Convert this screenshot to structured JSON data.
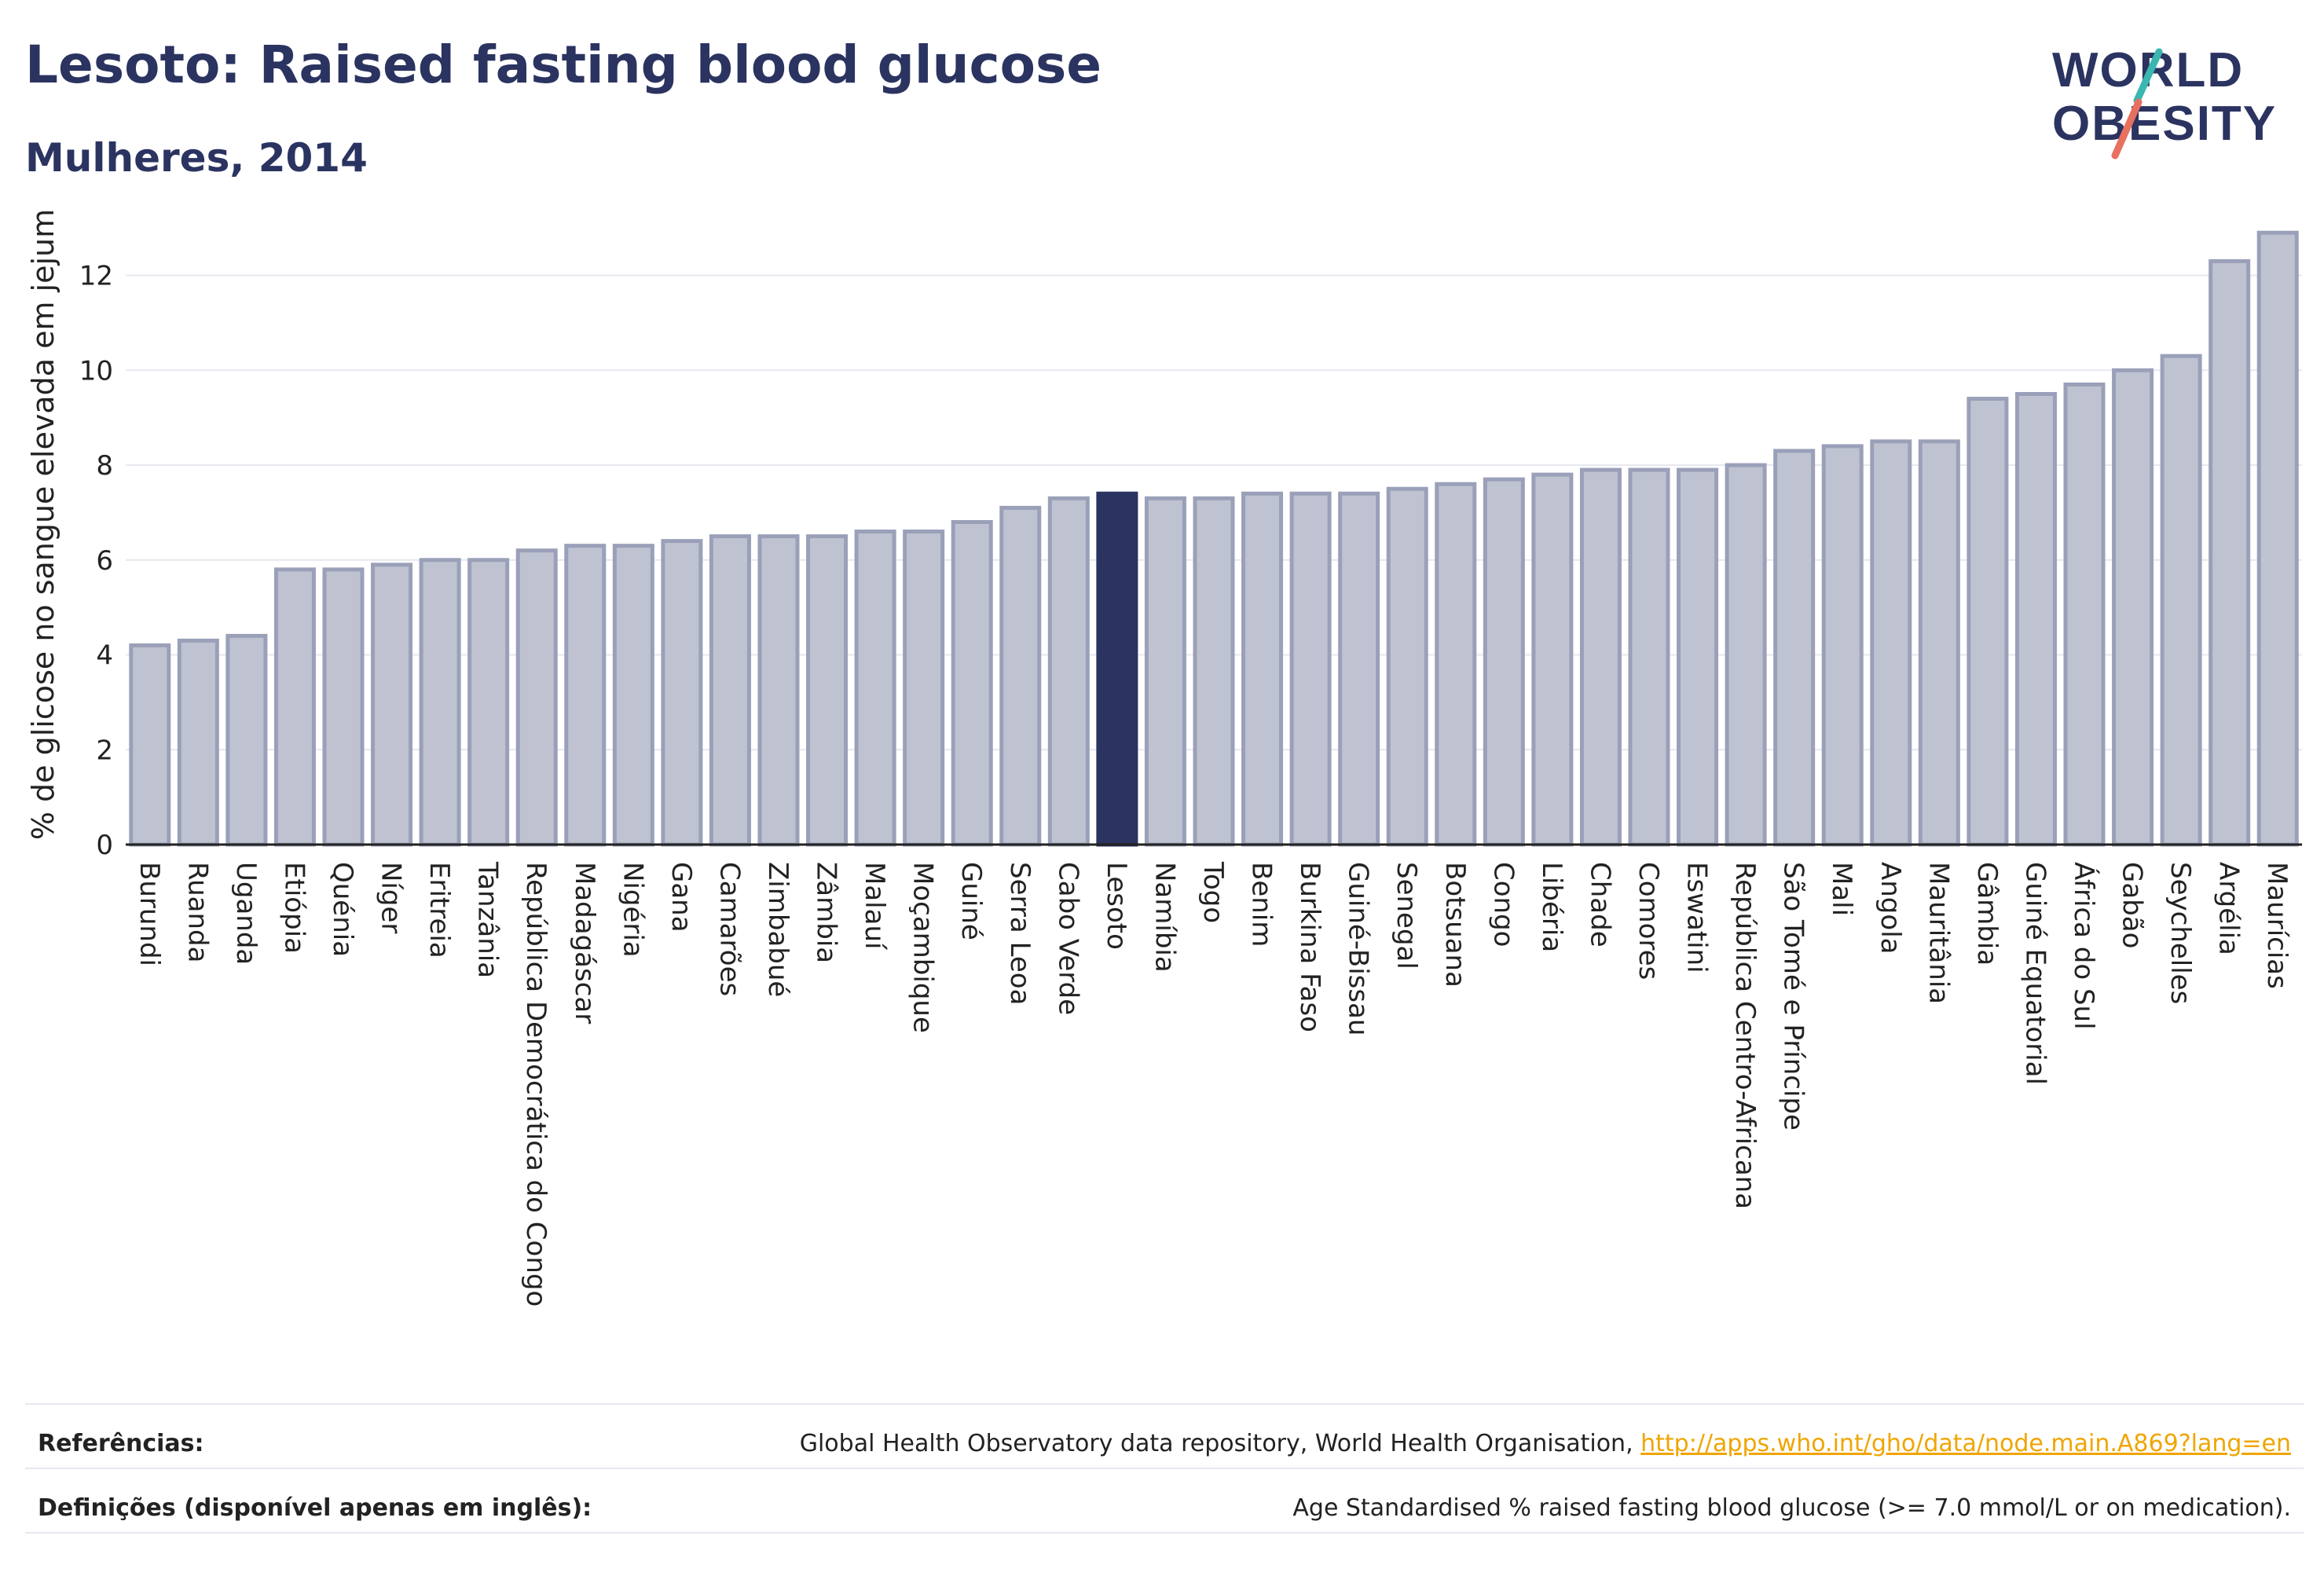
{
  "header": {
    "title": "Lesoto: Raised fasting blood glucose",
    "subtitle": "Mulheres, 2014"
  },
  "logo": {
    "line1": "WORLD",
    "line2": "OBESITY",
    "accent_teal": "#39b7b0",
    "accent_coral": "#e8705f",
    "text_color": "#2b3360"
  },
  "colors": {
    "bar": "#bfc3d1",
    "bar_stroke": "#9aa0b8",
    "highlight": "#2b3360",
    "grid": "#e6e8ef",
    "axis_text": "#222222"
  },
  "chart_data": {
    "type": "bar",
    "ylabel": "% de glicose no sangue elevada em jejum",
    "xlabel": "",
    "ylim": [
      0,
      13.5
    ],
    "yticks": [
      0,
      2,
      4,
      6,
      8,
      10,
      12
    ],
    "grid": true,
    "highlight": "Lesoto",
    "categories": [
      "Burundi",
      "Ruanda",
      "Uganda",
      "Etiópia",
      "Quénia",
      "Níger",
      "Eritreia",
      "Tanzânia",
      "República Democrática do Congo",
      "Madagáscar",
      "Nigéria",
      "Gana",
      "Camarões",
      "Zimbabué",
      "Zâmbia",
      "Malauí",
      "Moçambique",
      "Guiné",
      "Serra Leoa",
      "Cabo Verde",
      "Lesoto",
      "Namíbia",
      "Togo",
      "Benim",
      "Burkina Faso",
      "Guiné-Bissau",
      "Senegal",
      "Botsuana",
      "Congo",
      "Libéria",
      "Chade",
      "Comores",
      "Eswatini",
      "República Centro-Africana",
      "São Tomé e Príncipe",
      "Mali",
      "Angola",
      "Mauritânia",
      "Gâmbia",
      "Guiné Equatorial",
      "África do Sul",
      "Gabão",
      "Seychelles",
      "Argélia",
      "Maurícias"
    ],
    "values": [
      4.2,
      4.3,
      4.4,
      5.8,
      5.8,
      5.9,
      6.0,
      6.0,
      6.2,
      6.3,
      6.3,
      6.4,
      6.5,
      6.5,
      6.5,
      6.6,
      6.6,
      6.8,
      7.1,
      7.3,
      7.4,
      7.3,
      7.3,
      7.4,
      7.4,
      7.4,
      7.5,
      7.6,
      7.7,
      7.8,
      7.9,
      7.9,
      7.9,
      8.0,
      8.3,
      8.4,
      8.5,
      8.5,
      9.4,
      9.5,
      9.7,
      10.0,
      10.3,
      12.3,
      12.9
    ]
  },
  "footer": {
    "references_label": "Referências:",
    "references_text": "Global Health Observatory data repository, World Health Organisation, ",
    "references_link": "http://apps.who.int/gho/data/node.main.A869?lang=en",
    "definitions_label": "Definições (disponível apenas em inglês):",
    "definitions_text": "Age Standardised % raised fasting blood glucose (>= 7.0 mmol/L or on medication)."
  }
}
